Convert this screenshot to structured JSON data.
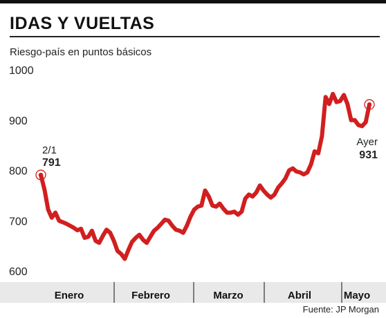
{
  "title": "IDAS Y VUELTAS",
  "subtitle": "Riesgo-país en puntos básicos",
  "source": "Fuente: JP Morgan",
  "colors": {
    "line": "#d11f1f",
    "axis_band": "#e9e9e9",
    "text": "#1a1a1a"
  },
  "chart_data": {
    "type": "line",
    "title": "IDAS Y VUELTAS",
    "ylabel": "Riesgo-país en puntos básicos",
    "ylim": [
      600,
      1000
    ],
    "yticks": [
      "1000",
      "900",
      "800",
      "700",
      "600"
    ],
    "months": [
      "Enero",
      "Febrero",
      "Marzo",
      "Abril",
      "Mayo"
    ],
    "grid": false,
    "series": [
      {
        "values": [
          791,
          762,
          722,
          706,
          716,
          700,
          697,
          694,
          690,
          686,
          681,
          684,
          666,
          668,
          680,
          660,
          656,
          670,
          682,
          676,
          660,
          640,
          634,
          624,
          642,
          658,
          666,
          672,
          662,
          656,
          668,
          680,
          686,
          694,
          702,
          700,
          690,
          682,
          680,
          676,
          690,
          708,
          722,
          728,
          730,
          760,
          748,
          730,
          728,
          734,
          724,
          716,
          716,
          718,
          712,
          718,
          744,
          752,
          748,
          756,
          770,
          760,
          752,
          746,
          752,
          766,
          774,
          784,
          800,
          804,
          798,
          796,
          792,
          796,
          812,
          838,
          834,
          868,
          946,
          932,
          952,
          936,
          938,
          950,
          932,
          900,
          900,
          890,
          888,
          896,
          931
        ]
      }
    ],
    "annotations": [
      {
        "label": "2/1",
        "value": "791"
      },
      {
        "label": "Ayer",
        "value": "931"
      }
    ]
  }
}
